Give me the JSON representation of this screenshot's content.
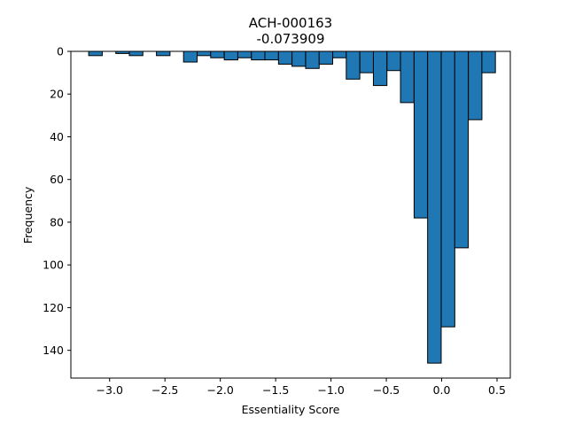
{
  "chart_data": {
    "type": "bar",
    "title_line1": "ACH-000163",
    "title_line2": "-0.073909",
    "xlabel": "Essentiality Score",
    "ylabel": "Frequency",
    "xlim": [
      -3.35,
      0.62
    ],
    "ylim": [
      153,
      0
    ],
    "y_inverted": true,
    "grid": false,
    "bar_color": "#1f77b4",
    "bar_edge_color": "#000000",
    "x_ticks": [
      -3.0,
      -2.5,
      -2.0,
      -1.5,
      -1.0,
      -0.5,
      0.0,
      0.5
    ],
    "x_tick_labels": [
      "−3.0",
      "−2.5",
      "−2.0",
      "−1.5",
      "−1.0",
      "−0.5",
      "0.0",
      "0.5"
    ],
    "y_ticks": [
      0,
      20,
      40,
      60,
      80,
      100,
      120,
      140
    ],
    "y_tick_labels": [
      "0",
      "20",
      "40",
      "60",
      "80",
      "100",
      "120",
      "140"
    ],
    "bin_width": 0.1225,
    "bins": [
      {
        "x0": -3.189,
        "count": 2
      },
      {
        "x0": -3.067,
        "count": 0
      },
      {
        "x0": -2.944,
        "count": 1
      },
      {
        "x0": -2.822,
        "count": 2
      },
      {
        "x0": -2.699,
        "count": 0
      },
      {
        "x0": -2.577,
        "count": 2
      },
      {
        "x0": -2.454,
        "count": 0
      },
      {
        "x0": -2.332,
        "count": 5
      },
      {
        "x0": -2.209,
        "count": 2
      },
      {
        "x0": -2.087,
        "count": 3
      },
      {
        "x0": -1.964,
        "count": 4
      },
      {
        "x0": -1.842,
        "count": 3
      },
      {
        "x0": -1.719,
        "count": 4
      },
      {
        "x0": -1.597,
        "count": 4
      },
      {
        "x0": -1.474,
        "count": 6
      },
      {
        "x0": -1.352,
        "count": 7
      },
      {
        "x0": -1.229,
        "count": 8
      },
      {
        "x0": -1.107,
        "count": 6
      },
      {
        "x0": -0.984,
        "count": 3
      },
      {
        "x0": -0.862,
        "count": 13
      },
      {
        "x0": -0.739,
        "count": 10
      },
      {
        "x0": -0.617,
        "count": 16
      },
      {
        "x0": -0.494,
        "count": 9
      },
      {
        "x0": -0.372,
        "count": 24
      },
      {
        "x0": -0.249,
        "count": 78
      },
      {
        "x0": -0.127,
        "count": 146
      },
      {
        "x0": -0.004,
        "count": 129
      },
      {
        "x0": 0.118,
        "count": 92
      },
      {
        "x0": 0.241,
        "count": 32
      },
      {
        "x0": 0.363,
        "count": 10
      }
    ]
  }
}
